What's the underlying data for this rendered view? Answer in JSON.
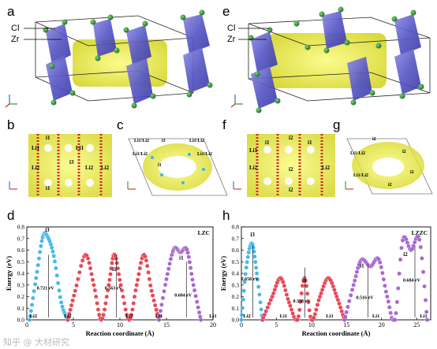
{
  "panels": {
    "a": "a",
    "b": "b",
    "c": "c",
    "d": "d",
    "e": "e",
    "f": "f",
    "g": "g",
    "h": "h"
  },
  "structure_labels": {
    "cl": "Cl",
    "zr": "Zr"
  },
  "axes_glyphs": {
    "a": "a",
    "b": "b",
    "c": "c"
  },
  "site_labels_left": [
    "i1",
    "Li1",
    "Li2",
    "i3",
    "Li2",
    "i1",
    "Li1",
    "Li2"
  ],
  "site_labels_left_c": [
    "Li1/Li2",
    "i3",
    "Li1/Li2",
    "i1",
    "Li1/Li2",
    "Li1/Li2"
  ],
  "site_labels_right": [
    "i2",
    "i1",
    "Li1",
    "Li2",
    "i1",
    "i2",
    "Li2",
    "i2"
  ],
  "site_labels_right_g": [
    "i2",
    "Li1/Li2",
    "i2",
    "i2",
    "Li1/Li2",
    "i2"
  ],
  "watermark": "知乎 @ 大材研究",
  "colors": {
    "blue_series": "#3eb6e8",
    "red_series": "#e83e4e",
    "purple_series": "#a65fcf",
    "octahedra": "#6f6fd8",
    "isosurface": "#e8e836",
    "cl_atom": "#2e8b2e"
  },
  "chart_data": [
    {
      "type": "line",
      "title": "LZC",
      "xlabel": "Reaction coordinate (Å)",
      "ylabel": "Energy (eV)",
      "xlim": [
        0,
        20
      ],
      "ylim": [
        0.0,
        0.8
      ],
      "xticks": [
        0,
        5,
        10,
        15,
        20
      ],
      "yticks": [
        0.0,
        0.1,
        0.2,
        0.3,
        0.4,
        0.5,
        0.6,
        0.7,
        0.8
      ],
      "series": [
        {
          "color": "#3eb6e8",
          "x": [
            0.3,
            1.0,
            1.7,
            2.2,
            2.9,
            3.7,
            4.4
          ],
          "y": [
            0.0,
            0.36,
            0.71,
            0.721,
            0.55,
            0.15,
            0.0
          ]
        },
        {
          "color": "#e83e4e",
          "x": [
            4.4,
            5.2,
            6.3,
            7.2,
            8.0,
            8.8,
            9.4,
            10.1,
            11.0,
            11.8,
            12.6,
            13.4,
            14.2
          ],
          "y": [
            0.0,
            0.25,
            0.56,
            0.3,
            0.0,
            0.3,
            0.563,
            0.3,
            0.0,
            0.3,
            0.56,
            0.25,
            0.0
          ]
        },
        {
          "color": "#a65fcf",
          "x": [
            14.2,
            15.0,
            15.8,
            16.5,
            17.2,
            17.9,
            18.7
          ],
          "y": [
            0.0,
            0.35,
            0.61,
            0.58,
            0.604,
            0.3,
            0.0
          ]
        }
      ],
      "annotations": [
        {
          "text": "i3",
          "x": 2.2,
          "y": 0.76
        },
        {
          "text": "0.721 eV",
          "x": 2.0,
          "y": 0.26
        },
        {
          "text": "0.563 eV",
          "x": 9.3,
          "y": 0.26
        },
        {
          "text": "i1",
          "x": 9.4,
          "y": 0.42
        },
        {
          "text": "0.604 eV",
          "x": 16.8,
          "y": 0.2
        },
        {
          "text": "i1",
          "x": 16.6,
          "y": 0.52
        }
      ],
      "site_labels": [
        "Li2",
        "Li2",
        "Li2",
        "Li1",
        "Li1"
      ],
      "site_x": [
        0.7,
        4.4,
        11.0,
        14.2,
        20.0
      ]
    },
    {
      "type": "line",
      "title": "LZZC",
      "xlabel": "Reaction coordinate (Å)",
      "ylabel": "Energy (eV)",
      "xlim": [
        0,
        27
      ],
      "ylim": [
        0.0,
        0.8
      ],
      "xticks": [
        0,
        5,
        10,
        15,
        20,
        25
      ],
      "yticks": [
        0.0,
        0.1,
        0.2,
        0.3,
        0.4,
        0.5,
        0.6,
        0.7,
        0.8
      ],
      "series": [
        {
          "color": "#3eb6e8",
          "x": [
            0.0,
            0.7,
            1.5,
            2.2,
            3.0
          ],
          "y": [
            0.0,
            0.45,
            0.658,
            0.4,
            0.0
          ]
        },
        {
          "color": "#e83e4e",
          "x": [
            3.0,
            4.4,
            5.6,
            6.8,
            8.0,
            9.0,
            10.0,
            11.2,
            12.4,
            13.6,
            14.7
          ],
          "y": [
            0.0,
            0.2,
            0.36,
            0.15,
            0.0,
            0.358,
            0.0,
            0.2,
            0.36,
            0.2,
            0.0
          ]
        },
        {
          "color": "#a65fcf",
          "x": [
            14.7,
            16.0,
            17.1,
            18.4,
            19.6,
            20.8,
            21.9,
            23.0,
            24.2,
            25.4,
            26.5
          ],
          "y": [
            0.0,
            0.3,
            0.516,
            0.46,
            0.52,
            0.2,
            0.0,
            0.684,
            0.6,
            0.69,
            0.0
          ]
        }
      ],
      "annotations": [
        {
          "text": "i3",
          "x": 1.6,
          "y": 0.72
        },
        {
          "text": "0.658 eV",
          "x": 1.2,
          "y": 0.34
        },
        {
          "text": "0.358 eV",
          "x": 8.6,
          "y": 0.15
        },
        {
          "text": "i1",
          "x": 9.0,
          "y": 0.32
        },
        {
          "text": "0.516 eV",
          "x": 17.6,
          "y": 0.18
        },
        {
          "text": "i1",
          "x": 17.2,
          "y": 0.45
        },
        {
          "text": "i2",
          "x": 23.4,
          "y": 0.55
        },
        {
          "text": "0.684 eV",
          "x": 24.3,
          "y": 0.33
        }
      ],
      "site_labels": [
        "Li2",
        "Li1",
        "Li1",
        "Li1",
        "Li1"
      ],
      "site_x": [
        0.8,
        6.0,
        12.6,
        19.2,
        26.0
      ]
    }
  ]
}
